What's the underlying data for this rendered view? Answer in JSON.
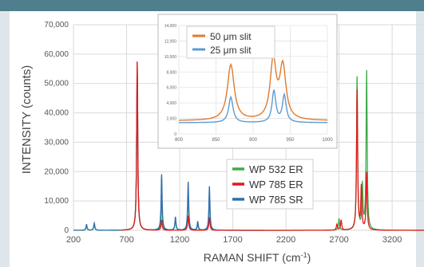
{
  "colors": {
    "header_bar": "#4f7f8c",
    "frame": "#dfe6eb",
    "wp532er": "#3caa4a",
    "wp785er": "#e01b1b",
    "wp785sr": "#2f6fb0",
    "inset_50um": "#e07a2e",
    "inset_25um": "#5b9bd5"
  },
  "chart_data": [
    {
      "type": "line",
      "xlabel": "RAMAN SHIFT (cm⁻¹)",
      "ylabel": "INTENSITY (counts)",
      "xlim": [
        200,
        3500
      ],
      "ylim": [
        0,
        70000
      ],
      "x_ticks": [
        200,
        700,
        1200,
        1700,
        2200,
        2700,
        3200
      ],
      "y_ticks": [
        0,
        10000,
        20000,
        30000,
        40000,
        50000,
        60000,
        70000
      ],
      "y_tick_labels": [
        "0",
        "10,000",
        "20,000",
        "30,000",
        "40,000",
        "50,000",
        "60,000",
        "70,000"
      ],
      "grid": true,
      "legend_position": "right",
      "series": [
        {
          "name": "WP 532 ER",
          "color_key": "wp532er",
          "peaks": [
            [
              323,
              1500
            ],
            [
              396,
              2000
            ],
            [
              800,
              57000
            ],
            [
              1030,
              10000
            ],
            [
              1160,
              3500
            ],
            [
              1280,
              12000
            ],
            [
              1370,
              2000
            ],
            [
              1480,
              10500
            ],
            [
              2700,
              4000
            ],
            [
              2870,
              52000
            ],
            [
              2920,
              15000
            ],
            [
              2960,
              54000
            ]
          ],
          "range": [
            200,
            3500
          ]
        },
        {
          "name": "WP 785 ER",
          "color_key": "wp785er",
          "peaks": [
            [
              800,
              57500
            ],
            [
              1030,
              3500
            ],
            [
              1280,
              5000
            ],
            [
              1480,
              4500
            ],
            [
              2680,
              2000
            ],
            [
              2720,
              3500
            ],
            [
              2870,
              47500
            ],
            [
              2910,
              14500
            ],
            [
              2960,
              19500
            ]
          ],
          "range": [
            650,
            3500
          ]
        },
        {
          "name": "WP 785 SR",
          "color_key": "wp785sr",
          "peaks": [
            [
              323,
              2000
            ],
            [
              396,
              2500
            ],
            [
              800,
              57000
            ],
            [
              1030,
              19000
            ],
            [
              1160,
              4500
            ],
            [
              1280,
              16500
            ],
            [
              1370,
              3000
            ],
            [
              1480,
              15000
            ]
          ],
          "range": [
            200,
            2000
          ]
        }
      ]
    },
    {
      "type": "line",
      "xlim": [
        800,
        1000
      ],
      "ylim": [
        0,
        14000
      ],
      "x_ticks": [
        800,
        850,
        900,
        950,
        1000
      ],
      "y_ticks": [
        0,
        2000,
        4000,
        6000,
        8000,
        10000,
        12000,
        14000
      ],
      "y_tick_labels": [
        "0",
        "2,000",
        "4,000",
        "6,000",
        "8,000",
        "10,000",
        "12,000",
        "14,000"
      ],
      "grid": true,
      "legend_position": "top-center",
      "series": [
        {
          "name": "50 μm slit",
          "color_key": "inset_50um",
          "baseline": 1700,
          "peaks": [
            [
              870,
              7200,
              5.5
            ],
            [
              927,
              7600,
              4.8
            ],
            [
              940,
              6800,
              5
            ]
          ]
        },
        {
          "name": "25 μm slit",
          "color_key": "inset_25um",
          "baseline": 1450,
          "peaks": [
            [
              870,
              3300,
              3.5
            ],
            [
              928,
              4100,
              3
            ],
            [
              942,
              3500,
              3
            ]
          ]
        }
      ]
    }
  ]
}
